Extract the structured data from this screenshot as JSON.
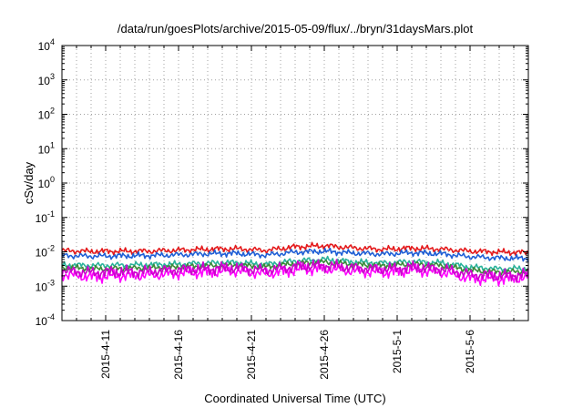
{
  "chart_data": {
    "type": "line",
    "title": "/data/run/goesPlots/archive/2015-05-09/flux/../bryn/31daysMars.plot",
    "xlabel": "Coordinated Universal Time (UTC)",
    "ylabel": "cSv/day",
    "yscale": "log",
    "ylim": [
      0.0001,
      10000
    ],
    "xlim": [
      "2015-04-08",
      "2015-05-10"
    ],
    "grid": true,
    "legend": "none",
    "x_tick_labels": [
      "2015-4-11",
      "2015-4-16",
      "2015-4-21",
      "2015-4-26",
      "2015-5-1",
      "2015-5-6"
    ],
    "x_tick_dates": [
      "2015-04-11",
      "2015-04-16",
      "2015-04-21",
      "2015-04-26",
      "2015-05-01",
      "2015-05-06"
    ],
    "y_ticks": [
      {
        "value": 0.0001,
        "base": "10",
        "exp": "-4"
      },
      {
        "value": 0.001,
        "base": "10",
        "exp": "-3"
      },
      {
        "value": 0.01,
        "base": "10",
        "exp": "-2"
      },
      {
        "value": 0.1,
        "base": "10",
        "exp": "-1"
      },
      {
        "value": 1,
        "base": "10",
        "exp": "0"
      },
      {
        "value": 10,
        "base": "10",
        "exp": "1"
      },
      {
        "value": 100,
        "base": "10",
        "exp": "2"
      },
      {
        "value": 1000,
        "base": "10",
        "exp": "3"
      },
      {
        "value": 10000,
        "base": "10",
        "exp": "4"
      }
    ],
    "x": [
      "2015-04-08",
      "2015-04-10",
      "2015-04-12",
      "2015-04-14",
      "2015-04-16",
      "2015-04-18",
      "2015-04-20",
      "2015-04-22",
      "2015-04-24",
      "2015-04-26",
      "2015-04-28",
      "2015-04-30",
      "2015-05-02",
      "2015-05-04",
      "2015-05-06",
      "2015-05-08",
      "2015-05-10"
    ],
    "series": [
      {
        "color": "#e41a1c",
        "values": [
          0.0108,
          0.0103,
          0.0104,
          0.0105,
          0.0112,
          0.0119,
          0.0123,
          0.011,
          0.014,
          0.015,
          0.013,
          0.0118,
          0.0128,
          0.012,
          0.0105,
          0.0098,
          0.0095
        ]
      },
      {
        "color": "#1f5fd6",
        "values": [
          0.0078,
          0.0075,
          0.0076,
          0.0078,
          0.0082,
          0.0088,
          0.009,
          0.008,
          0.0098,
          0.0104,
          0.0092,
          0.0086,
          0.0094,
          0.0088,
          0.0072,
          0.0066,
          0.0064
        ]
      },
      {
        "color": "#2bb39b",
        "values": [
          0.0042,
          0.004,
          0.0041,
          0.0042,
          0.0044,
          0.0047,
          0.0049,
          0.0043,
          0.0055,
          0.006,
          0.0051,
          0.0047,
          0.0052,
          0.0048,
          0.0036,
          0.0032,
          0.0033
        ]
      },
      {
        "color": "#3c8a3a",
        "values": [
          0.0035,
          0.0032,
          0.0033,
          0.0034,
          0.0036,
          0.0039,
          0.0041,
          0.0036,
          0.0046,
          0.005,
          0.0043,
          0.0039,
          0.0044,
          0.004,
          0.0029,
          0.0026,
          0.0027
        ]
      },
      {
        "color": "#ff00ff",
        "values": [
          0.0022,
          0.0019,
          0.002,
          0.0021,
          0.0024,
          0.0026,
          0.0028,
          0.0023,
          0.003,
          0.0033,
          0.0028,
          0.0025,
          0.0029,
          0.0026,
          0.0017,
          0.0016,
          0.0018
        ]
      },
      {
        "color": "#cc00cc",
        "values": [
          0.0028,
          0.0025,
          0.0026,
          0.0027,
          0.003,
          0.0032,
          0.0034,
          0.0029,
          0.0037,
          0.004,
          0.0034,
          0.0031,
          0.0035,
          0.0032,
          0.0022,
          0.002,
          0.0022
        ]
      }
    ]
  }
}
